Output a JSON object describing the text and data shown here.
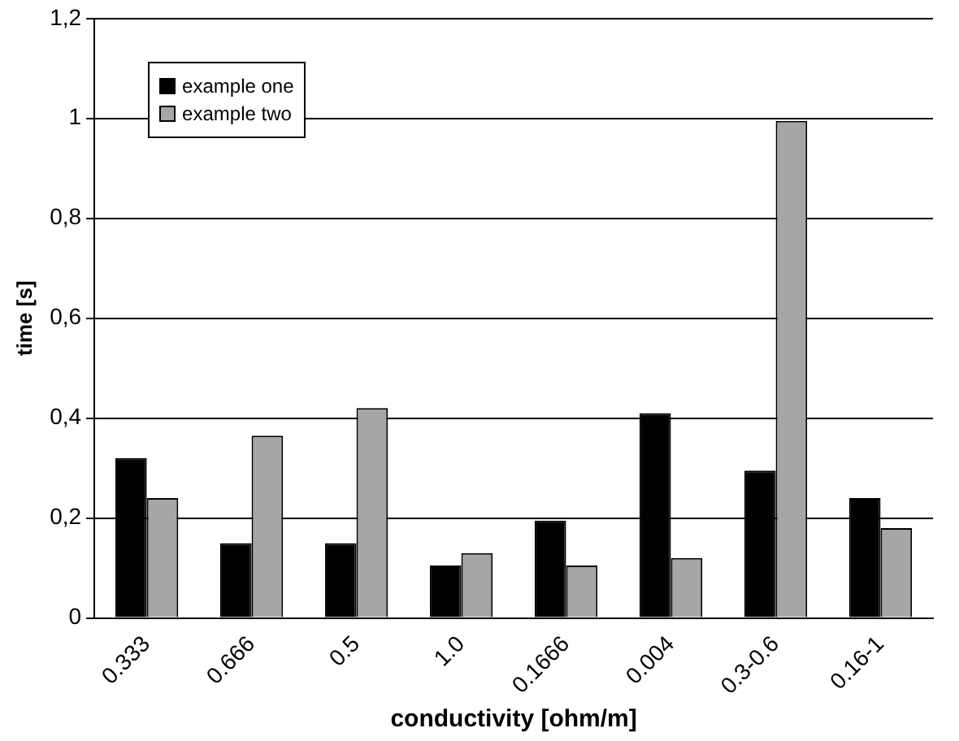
{
  "chart_data": {
    "type": "bar",
    "xlabel": "conductivity [ohm/m]",
    "ylabel": "time [s]",
    "categories": [
      "0.333",
      "0.666",
      "0.5",
      "1.0",
      "0.1666",
      "0.004",
      "0.3-0.6",
      "0.16-1"
    ],
    "series": [
      {
        "name": "example one",
        "color": "#000000",
        "values": [
          0.32,
          0.15,
          0.15,
          0.105,
          0.195,
          0.41,
          0.295,
          0.24
        ]
      },
      {
        "name": "example two",
        "color": "#a6a6a6",
        "values": [
          0.24,
          0.365,
          0.42,
          0.13,
          0.105,
          0.12,
          0.995,
          0.18
        ]
      }
    ],
    "ylim": [
      0,
      1.2
    ],
    "yticks": [
      0,
      {
        "value": 0.2,
        "label": "0,2"
      },
      {
        "value": 0.4,
        "label": "0,4"
      },
      {
        "value": 0.6,
        "label": "0,6"
      },
      {
        "value": 0.8,
        "label": "0,8"
      },
      1,
      {
        "value": 1.2,
        "label": "1,2"
      }
    ],
    "grid": "y",
    "legend": "top left"
  }
}
